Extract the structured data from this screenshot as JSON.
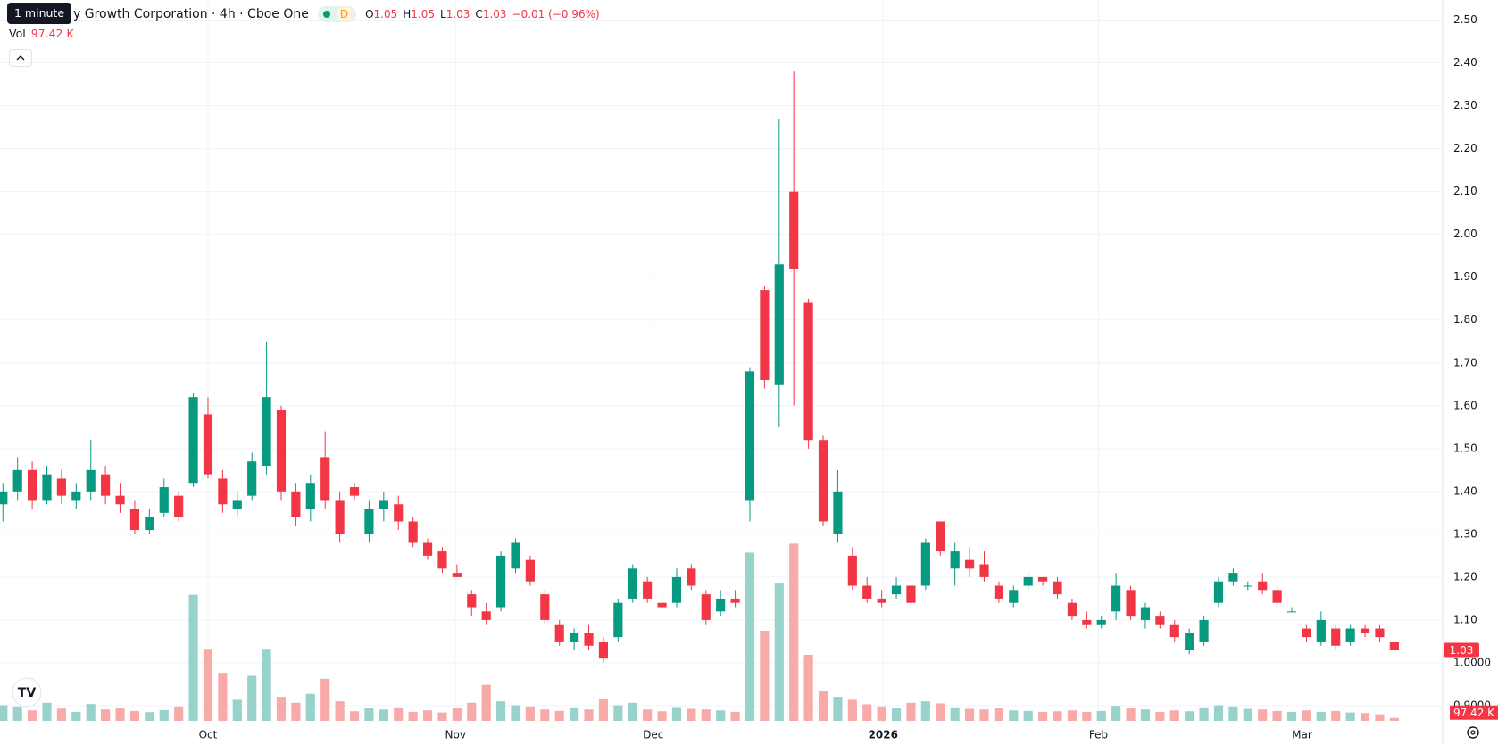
{
  "tooltip": "1 minute",
  "chart_data": {
    "type": "candlestick",
    "title": "y Growth Corporation · 4h · Cboe One",
    "badge": "D",
    "ohlc_labels": [
      "O",
      "H",
      "L",
      "C"
    ],
    "change": "−0.01 (−0.96%)",
    "volume_label": "Vol",
    "up_color": "#089981",
    "down_color": "#f23645",
    "volume_up_color": "#97d3ca",
    "volume_down_color": "#f8aaa8",
    "grid": true,
    "open": [
      1.37,
      1.4,
      1.45,
      1.38,
      1.43,
      1.38,
      1.4,
      1.44,
      1.39,
      1.36,
      1.31,
      1.35,
      1.39,
      1.42,
      1.58,
      1.43,
      1.36,
      1.39,
      1.46,
      1.59,
      1.4,
      1.36,
      1.48,
      1.38,
      1.41,
      1.3,
      1.36,
      1.37,
      1.33,
      1.28,
      1.26,
      1.21,
      1.16,
      1.12,
      1.13,
      1.22,
      1.24,
      1.16,
      1.09,
      1.05,
      1.07,
      1.05,
      1.06,
      1.15,
      1.19,
      1.14,
      1.14,
      1.22,
      1.16,
      1.12,
      1.15,
      1.38,
      1.87,
      1.65,
      2.1,
      1.84,
      1.52,
      1.3,
      1.25,
      1.18,
      1.15,
      1.16,
      1.18,
      1.18,
      1.33,
      1.22,
      1.24,
      1.23,
      1.18,
      1.14,
      1.18,
      1.2,
      1.19,
      1.14,
      1.1,
      1.09,
      1.12,
      1.17,
      1.1,
      1.11,
      1.09,
      1.03,
      1.05,
      1.14,
      1.19,
      1.18,
      1.19,
      1.17,
      1.12,
      1.08,
      1.05,
      1.08,
      1.05,
      1.08,
      1.08,
      1.05
    ],
    "high": [
      1.42,
      1.48,
      1.47,
      1.46,
      1.45,
      1.42,
      1.52,
      1.46,
      1.42,
      1.38,
      1.36,
      1.43,
      1.4,
      1.63,
      1.62,
      1.45,
      1.4,
      1.49,
      1.75,
      1.6,
      1.42,
      1.44,
      1.54,
      1.4,
      1.42,
      1.38,
      1.4,
      1.39,
      1.34,
      1.29,
      1.27,
      1.23,
      1.17,
      1.14,
      1.26,
      1.29,
      1.25,
      1.17,
      1.1,
      1.08,
      1.09,
      1.06,
      1.15,
      1.23,
      1.2,
      1.16,
      1.22,
      1.23,
      1.17,
      1.17,
      1.17,
      1.69,
      1.88,
      2.27,
      2.38,
      1.85,
      1.53,
      1.45,
      1.27,
      1.2,
      1.17,
      1.2,
      1.19,
      1.29,
      1.33,
      1.28,
      1.27,
      1.26,
      1.19,
      1.18,
      1.21,
      1.2,
      1.2,
      1.15,
      1.12,
      1.11,
      1.21,
      1.18,
      1.14,
      1.12,
      1.1,
      1.08,
      1.11,
      1.2,
      1.22,
      1.19,
      1.21,
      1.18,
      1.13,
      1.09,
      1.12,
      1.09,
      1.09,
      1.09,
      1.09,
      1.05
    ],
    "low": [
      1.33,
      1.38,
      1.36,
      1.37,
      1.37,
      1.36,
      1.38,
      1.37,
      1.35,
      1.3,
      1.3,
      1.34,
      1.33,
      1.41,
      1.43,
      1.35,
      1.34,
      1.38,
      1.44,
      1.38,
      1.32,
      1.33,
      1.36,
      1.28,
      1.38,
      1.28,
      1.33,
      1.31,
      1.27,
      1.24,
      1.21,
      1.2,
      1.11,
      1.09,
      1.12,
      1.21,
      1.18,
      1.09,
      1.04,
      1.03,
      1.03,
      1.0,
      1.05,
      1.14,
      1.14,
      1.12,
      1.13,
      1.17,
      1.09,
      1.11,
      1.13,
      1.33,
      1.64,
      1.55,
      1.6,
      1.5,
      1.32,
      1.28,
      1.17,
      1.14,
      1.13,
      1.15,
      1.13,
      1.17,
      1.25,
      1.18,
      1.2,
      1.19,
      1.14,
      1.13,
      1.17,
      1.18,
      1.15,
      1.1,
      1.08,
      1.08,
      1.1,
      1.1,
      1.08,
      1.08,
      1.05,
      1.02,
      1.04,
      1.13,
      1.18,
      1.17,
      1.16,
      1.13,
      1.12,
      1.05,
      1.04,
      1.03,
      1.04,
      1.06,
      1.05,
      1.03
    ],
    "close": [
      1.4,
      1.45,
      1.38,
      1.44,
      1.39,
      1.4,
      1.45,
      1.39,
      1.37,
      1.31,
      1.34,
      1.41,
      1.34,
      1.62,
      1.44,
      1.37,
      1.38,
      1.47,
      1.62,
      1.4,
      1.34,
      1.42,
      1.38,
      1.3,
      1.39,
      1.36,
      1.38,
      1.33,
      1.28,
      1.25,
      1.22,
      1.2,
      1.13,
      1.1,
      1.25,
      1.28,
      1.19,
      1.1,
      1.05,
      1.07,
      1.04,
      1.01,
      1.14,
      1.22,
      1.15,
      1.13,
      1.2,
      1.18,
      1.1,
      1.15,
      1.14,
      1.68,
      1.66,
      1.93,
      1.92,
      1.52,
      1.33,
      1.4,
      1.18,
      1.15,
      1.14,
      1.18,
      1.14,
      1.28,
      1.26,
      1.26,
      1.22,
      1.2,
      1.15,
      1.17,
      1.2,
      1.19,
      1.16,
      1.11,
      1.09,
      1.1,
      1.18,
      1.11,
      1.13,
      1.09,
      1.06,
      1.07,
      1.1,
      1.19,
      1.21,
      1.18,
      1.17,
      1.14,
      1.12,
      1.06,
      1.1,
      1.04,
      1.08,
      1.07,
      1.06,
      1.03
    ],
    "volume": {
      "values": [
        520000,
        480000,
        350000,
        600000,
        410000,
        300000,
        560000,
        380000,
        420000,
        330000,
        290000,
        360000,
        480000,
        4200000,
        2400000,
        1600000,
        700000,
        1500000,
        2400000,
        800000,
        600000,
        900000,
        1400000,
        650000,
        320000,
        420000,
        380000,
        450000,
        300000,
        350000,
        280000,
        420000,
        600000,
        1200000,
        650000,
        520000,
        480000,
        380000,
        330000,
        450000,
        380000,
        720000,
        520000,
        600000,
        380000,
        320000,
        460000,
        400000,
        380000,
        350000,
        300000,
        5600000,
        3000000,
        4600000,
        5900000,
        2200000,
        1000000,
        800000,
        700000,
        550000,
        480000,
        420000,
        600000,
        650000,
        580000,
        450000,
        400000,
        380000,
        420000,
        350000,
        330000,
        300000,
        320000,
        350000,
        300000,
        330000,
        500000,
        420000,
        380000,
        300000,
        350000,
        320000,
        450000,
        520000,
        480000,
        400000,
        380000,
        330000,
        300000,
        350000,
        300000,
        330000,
        280000,
        260000,
        220000,
        97420
      ],
      "last_label": "97.42 K",
      "vlim": [
        0,
        6000000
      ]
    },
    "xlim": [
      -0.2,
      98.3
    ],
    "xticks": [
      {
        "value": 14.0,
        "label": "Oct"
      },
      {
        "value": 30.9,
        "label": "Nov"
      },
      {
        "value": 44.4,
        "label": "Dec"
      },
      {
        "value": 60.1,
        "label": "2026"
      },
      {
        "value": 74.8,
        "label": "Feb"
      },
      {
        "value": 88.7,
        "label": "Mar"
      }
    ],
    "ylim": [
      0.9,
      2.5
    ],
    "yticks": [
      {
        "value": 0.9,
        "label": "0.9000"
      },
      {
        "value": 1.0,
        "label": "1.0000"
      },
      {
        "value": 1.1,
        "label": "1.10"
      },
      {
        "value": 1.2,
        "label": "1.20"
      },
      {
        "value": 1.3,
        "label": "1.30"
      },
      {
        "value": 1.4,
        "label": "1.40"
      },
      {
        "value": 1.5,
        "label": "1.50"
      },
      {
        "value": 1.6,
        "label": "1.60"
      },
      {
        "value": 1.7,
        "label": "1.70"
      },
      {
        "value": 1.8,
        "label": "1.80"
      },
      {
        "value": 1.9,
        "label": "1.90"
      },
      {
        "value": 2.0,
        "label": "2.00"
      },
      {
        "value": 2.1,
        "label": "2.10"
      },
      {
        "value": 2.2,
        "label": "2.20"
      },
      {
        "value": 2.3,
        "label": "2.30"
      },
      {
        "value": 2.4,
        "label": "2.40"
      },
      {
        "value": 2.5,
        "label": "2.50"
      }
    ]
  }
}
